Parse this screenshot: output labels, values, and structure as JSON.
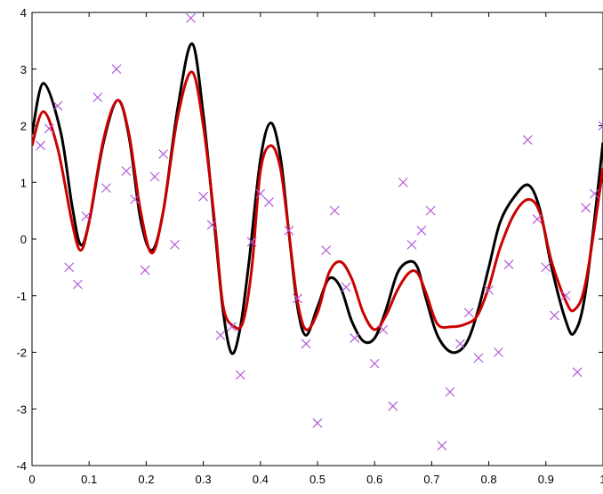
{
  "chart_data": {
    "type": "line",
    "title": "",
    "xlabel": "",
    "ylabel": "",
    "xlim": [
      0,
      1
    ],
    "ylim": [
      -4,
      4
    ],
    "x_ticks": [
      0,
      0.1,
      0.2,
      0.3,
      0.4,
      0.5,
      0.6,
      0.7,
      0.8,
      0.9,
      1
    ],
    "x_tick_labels": [
      "0",
      "0.1",
      "0.2",
      "0.3",
      "0.4",
      "0.5",
      "0.6",
      "0.7",
      "0.8",
      "0.9",
      "1"
    ],
    "y_ticks": [
      -4,
      -3,
      -2,
      -1,
      0,
      1,
      2,
      3,
      4
    ],
    "y_tick_labels": [
      "-4",
      "-3",
      "-2",
      "-1",
      "0",
      "1",
      "2",
      "3",
      "4"
    ],
    "grid": false,
    "legend": "none",
    "series": [
      {
        "color": "#000000",
        "style": "line",
        "x": [
          0.0,
          0.02,
          0.05,
          0.07,
          0.085,
          0.1,
          0.125,
          0.15,
          0.17,
          0.19,
          0.21,
          0.23,
          0.255,
          0.28,
          0.3,
          0.32,
          0.335,
          0.35,
          0.365,
          0.38,
          0.4,
          0.418,
          0.435,
          0.45,
          0.465,
          0.48,
          0.5,
          0.52,
          0.54,
          0.56,
          0.58,
          0.6,
          0.62,
          0.64,
          0.66,
          0.675,
          0.69,
          0.71,
          0.735,
          0.76,
          0.78,
          0.8,
          0.82,
          0.845,
          0.87,
          0.89,
          0.91,
          0.935,
          0.95,
          0.97,
          1.0
        ],
        "y": [
          1.85,
          2.75,
          1.9,
          0.6,
          -0.1,
          0.3,
          1.7,
          2.45,
          1.8,
          0.35,
          -0.2,
          0.5,
          2.3,
          3.45,
          2.2,
          0.2,
          -1.3,
          -2.02,
          -1.55,
          -0.4,
          1.4,
          2.05,
          1.45,
          0.1,
          -1.2,
          -1.7,
          -1.2,
          -0.7,
          -0.85,
          -1.45,
          -1.8,
          -1.75,
          -1.25,
          -0.6,
          -0.4,
          -0.5,
          -1.05,
          -1.7,
          -2.0,
          -1.85,
          -1.3,
          -0.5,
          0.3,
          0.75,
          0.95,
          0.5,
          -0.5,
          -1.45,
          -1.65,
          -0.9,
          1.7
        ]
      },
      {
        "color": "#cc0000",
        "style": "line",
        "x": [
          0.0,
          0.02,
          0.045,
          0.07,
          0.085,
          0.1,
          0.125,
          0.15,
          0.17,
          0.19,
          0.21,
          0.23,
          0.255,
          0.28,
          0.3,
          0.32,
          0.335,
          0.355,
          0.37,
          0.385,
          0.4,
          0.418,
          0.435,
          0.45,
          0.465,
          0.48,
          0.5,
          0.52,
          0.54,
          0.56,
          0.58,
          0.6,
          0.62,
          0.64,
          0.66,
          0.675,
          0.69,
          0.71,
          0.735,
          0.76,
          0.78,
          0.8,
          0.82,
          0.845,
          0.87,
          0.89,
          0.91,
          0.935,
          0.95,
          0.97,
          1.0
        ],
        "y": [
          1.65,
          2.25,
          1.6,
          0.3,
          -0.2,
          0.3,
          1.75,
          2.45,
          1.85,
          0.5,
          -0.25,
          0.5,
          2.15,
          2.95,
          2.0,
          0.3,
          -1.2,
          -1.55,
          -1.45,
          -0.5,
          1.2,
          1.65,
          1.25,
          0.1,
          -1.1,
          -1.6,
          -1.3,
          -0.6,
          -0.4,
          -0.7,
          -1.3,
          -1.6,
          -1.35,
          -0.9,
          -0.6,
          -0.6,
          -0.95,
          -1.5,
          -1.55,
          -1.5,
          -1.35,
          -0.85,
          -0.15,
          0.45,
          0.7,
          0.45,
          -0.4,
          -1.1,
          -1.25,
          -0.75,
          1.25
        ]
      },
      {
        "color": "#b259d9",
        "style": "scatter",
        "marker": "x",
        "x": [
          0.015,
          0.03,
          0.045,
          0.065,
          0.08,
          0.095,
          0.115,
          0.13,
          0.148,
          0.165,
          0.18,
          0.198,
          0.215,
          0.23,
          0.25,
          0.278,
          0.3,
          0.315,
          0.33,
          0.35,
          0.365,
          0.385,
          0.4,
          0.415,
          0.45,
          0.465,
          0.48,
          0.5,
          0.515,
          0.53,
          0.55,
          0.565,
          0.6,
          0.615,
          0.632,
          0.65,
          0.665,
          0.682,
          0.698,
          0.718,
          0.732,
          0.75,
          0.765,
          0.782,
          0.8,
          0.817,
          0.835,
          0.868,
          0.885,
          0.9,
          0.915,
          0.935,
          0.955,
          0.97,
          0.985,
          1.0
        ],
        "y": [
          1.65,
          1.95,
          2.35,
          -0.5,
          -0.8,
          0.4,
          2.5,
          0.9,
          3.0,
          1.2,
          0.7,
          -0.55,
          1.1,
          1.5,
          -0.1,
          3.9,
          0.75,
          0.25,
          -1.7,
          -1.55,
          -2.4,
          -0.05,
          0.8,
          0.65,
          0.15,
          -1.05,
          -1.85,
          -3.25,
          -0.2,
          0.5,
          -0.85,
          -1.75,
          -2.2,
          -1.6,
          -2.95,
          1.0,
          -0.1,
          0.15,
          0.5,
          -3.65,
          -2.7,
          -1.85,
          -1.3,
          -2.1,
          -0.9,
          -2.0,
          -0.45,
          1.75,
          0.35,
          -0.5,
          -1.35,
          -1.0,
          -2.35,
          0.55,
          0.8,
          2.0
        ]
      }
    ]
  }
}
